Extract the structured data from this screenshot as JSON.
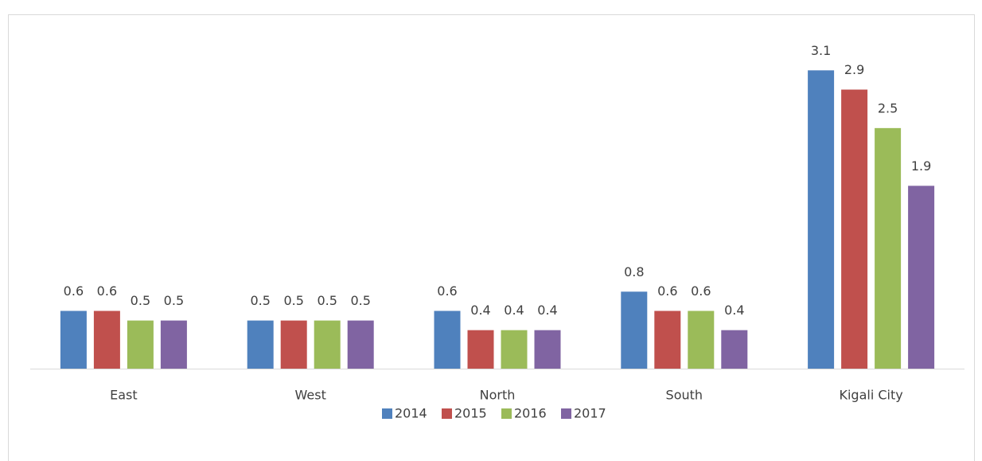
{
  "chart_data": {
    "type": "bar",
    "categories": [
      "East",
      "West",
      "North",
      "South",
      "Kigali City"
    ],
    "series": [
      {
        "name": "2014",
        "color": "#4f81bd",
        "values": [
          0.6,
          0.5,
          0.6,
          0.8,
          3.1
        ]
      },
      {
        "name": "2015",
        "color": "#c0504d",
        "values": [
          0.6,
          0.5,
          0.4,
          0.6,
          2.9
        ]
      },
      {
        "name": "2016",
        "color": "#9bbb59",
        "values": [
          0.5,
          0.5,
          0.4,
          0.6,
          2.5
        ]
      },
      {
        "name": "2017",
        "color": "#8064a2",
        "values": [
          0.5,
          0.5,
          0.4,
          0.4,
          1.9
        ]
      }
    ],
    "ylim": [
      0,
      3.5
    ],
    "legend": "bottom"
  }
}
